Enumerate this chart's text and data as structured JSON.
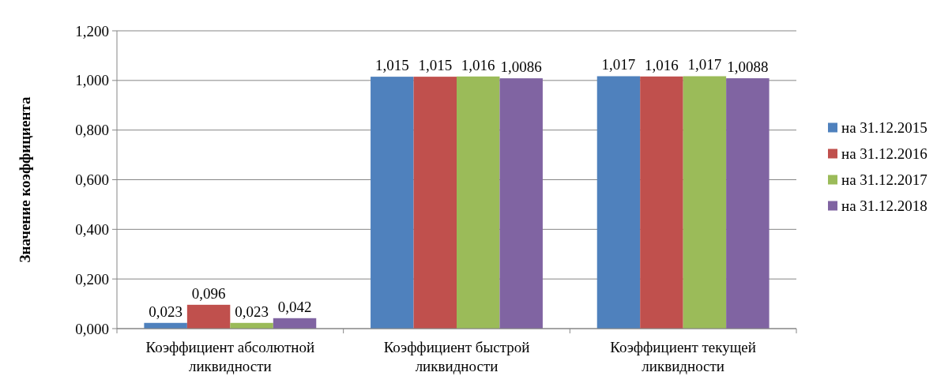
{
  "chart_data": {
    "type": "bar",
    "ylabel": "Значение коэффициента",
    "categories": [
      "Коэффициент абсолютной ликвидности",
      "Коэффициент быстрой ликвидности",
      "Коэффициент текущей ликвидности"
    ],
    "series": [
      {
        "name": "на 31.12.2015",
        "color": "#4f81bd",
        "values": [
          0.023,
          1.015,
          1.017
        ],
        "value_labels": [
          "0,023",
          "1,015",
          "1,017"
        ]
      },
      {
        "name": "на 31.12.2016",
        "color": "#c0504d",
        "values": [
          0.096,
          1.015,
          1.016
        ],
        "value_labels": [
          "0,096",
          "1,015",
          "1,016"
        ]
      },
      {
        "name": "на 31.12.2017",
        "color": "#9bbb59",
        "values": [
          0.023,
          1.016,
          1.017
        ],
        "value_labels": [
          "0,023",
          "1,016",
          "1,017"
        ]
      },
      {
        "name": "на 31.12.2018",
        "color": "#8064a2",
        "values": [
          0.042,
          1.0086,
          1.0088
        ],
        "value_labels": [
          "0,042",
          "1,0086",
          "1,0088"
        ]
      }
    ],
    "ylim": [
      0,
      1.2
    ],
    "yticks": [
      {
        "value": 0,
        "label": "0,000"
      },
      {
        "value": 0.2,
        "label": "0,200"
      },
      {
        "value": 0.4,
        "label": "0,400"
      },
      {
        "value": 0.6,
        "label": "0,600"
      },
      {
        "value": 0.8,
        "label": "0,800"
      },
      {
        "value": 1,
        "label": "1,000"
      },
      {
        "value": 1.2,
        "label": "1,200"
      }
    ],
    "grid": "y",
    "legend": "right"
  }
}
